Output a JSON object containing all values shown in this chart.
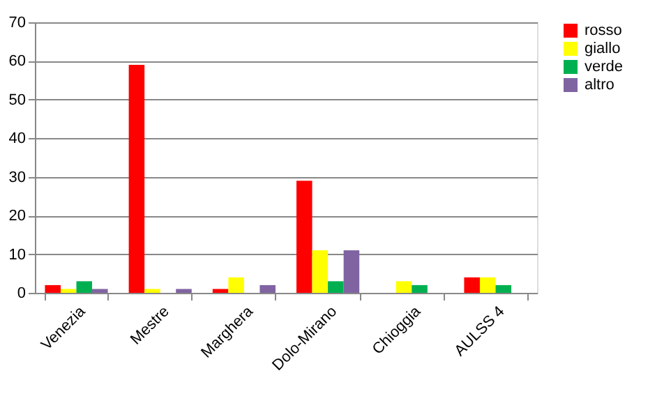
{
  "chart_data": {
    "type": "bar",
    "categories": [
      "Venezia",
      "Mestre",
      "Marghera",
      "Dolo-Mirano",
      "Chioggia",
      "AULSS 4"
    ],
    "series": [
      {
        "name": "rosso",
        "color": "#ff0000",
        "values": [
          2,
          59,
          1,
          29,
          0,
          4
        ]
      },
      {
        "name": "giallo",
        "color": "#ffff00",
        "values": [
          1,
          1,
          4,
          11,
          3,
          4
        ]
      },
      {
        "name": "verde",
        "color": "#00b050",
        "values": [
          3,
          0,
          0,
          3,
          2,
          2
        ]
      },
      {
        "name": "altro",
        "color": "#8064a2",
        "values": [
          1,
          1,
          2,
          11,
          0,
          0
        ]
      }
    ],
    "ylim": [
      0,
      70
    ],
    "yticks": [
      0,
      10,
      20,
      30,
      40,
      50,
      60,
      70
    ],
    "grid": "y",
    "legend": "right"
  }
}
